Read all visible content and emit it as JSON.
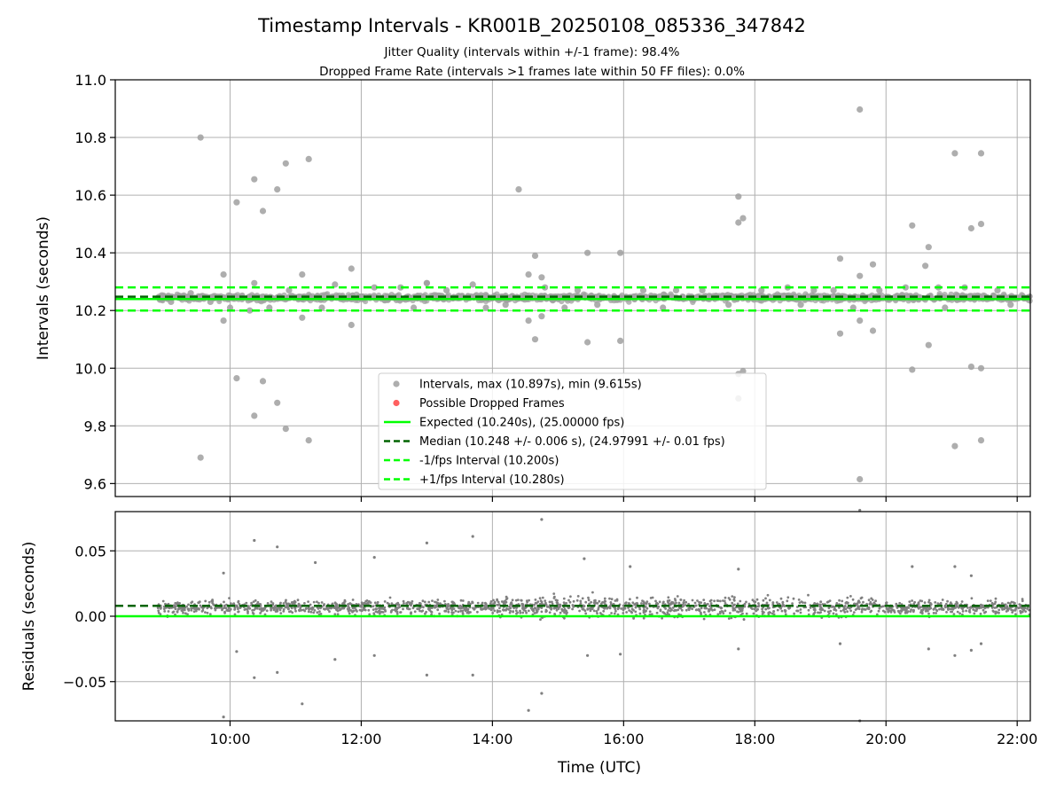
{
  "figure": {
    "title": "Timestamp Intervals - KR001B_20250108_085336_347842",
    "subtitle_1": "Jitter Quality (intervals within +/-1 frame): 98.4%",
    "subtitle_2": "Dropped Frame Rate (intervals >1 frames late within 50 FF files): 0.0%",
    "colors": {
      "expected": "#00ff00",
      "median": "#006400",
      "fps_bounds": "#00ff00",
      "intervals": "#a0a0a0",
      "residuals": "#808080",
      "dropped": "#ff4444",
      "grid": "#b0b0b0"
    }
  },
  "chart_data": [
    {
      "type": "scatter",
      "panel": "top",
      "ylabel": "Intervals (seconds)",
      "xlabel": "",
      "x_unit": "hours UTC",
      "xlim": [
        8.25,
        22.2
      ],
      "ylim": [
        9.555,
        11.0
      ],
      "xticks": [
        10,
        12,
        14,
        16,
        18,
        20,
        22
      ],
      "xtick_labels": [
        "10:00",
        "12:00",
        "14:00",
        "16:00",
        "18:00",
        "20:00",
        "22:00"
      ],
      "yticks": [
        9.6,
        9.8,
        10.0,
        10.2,
        10.4,
        10.6,
        10.8,
        11.0
      ],
      "ytick_labels": [
        "9.6",
        "9.8",
        "10.0",
        "10.2",
        "10.4",
        "10.6",
        "10.8",
        "11.0"
      ],
      "grid": true,
      "legend_position": "lower center",
      "legend": [
        {
          "label": "Intervals, max (10.897s), min (9.615s)",
          "kind": "dot",
          "color": "#a0a0a0"
        },
        {
          "label": "Possible Dropped Frames",
          "kind": "dot",
          "color": "#ff4444"
        },
        {
          "label": "Expected (10.240s), (25.00000 fps)",
          "kind": "solid",
          "color": "#00ff00"
        },
        {
          "label": "Median (10.248 +/- 0.006 s), (24.97991 +/- 0.01 fps)",
          "kind": "dashed",
          "color": "#006400"
        },
        {
          "label": "-1/fps Interval (10.200s)",
          "kind": "dashed",
          "color": "#00ff00"
        },
        {
          "label": "+1/fps Interval (10.280s)",
          "kind": "dashed",
          "color": "#00ff00"
        }
      ],
      "reference_lines": {
        "expected": 10.24,
        "median": 10.248,
        "minus_1fps": 10.2,
        "plus_1fps": 10.28
      },
      "dense_band": {
        "x_start": 8.9,
        "x_end": 22.2,
        "center": 10.245,
        "spread": 0.012
      },
      "series": [
        {
          "name": "Intervals",
          "points": [
            [
              9.55,
              10.8
            ],
            [
              9.55,
              9.69
            ],
            [
              9.9,
              10.325
            ],
            [
              9.9,
              10.165
            ],
            [
              10.1,
              10.575
            ],
            [
              10.1,
              9.965
            ],
            [
              10.37,
              10.655
            ],
            [
              10.37,
              9.835
            ],
            [
              10.37,
              10.295
            ],
            [
              10.5,
              10.545
            ],
            [
              10.5,
              9.955
            ],
            [
              10.72,
              10.62
            ],
            [
              10.72,
              9.88
            ],
            [
              10.85,
              10.71
            ],
            [
              10.85,
              9.79
            ],
            [
              11.2,
              10.725
            ],
            [
              11.2,
              9.75
            ],
            [
              11.1,
              10.325
            ],
            [
              11.1,
              10.175
            ],
            [
              11.85,
              10.345
            ],
            [
              11.85,
              10.15
            ],
            [
              13.0,
              10.295
            ],
            [
              13.0,
              10.295
            ],
            [
              14.4,
              10.62
            ],
            [
              14.55,
              10.325
            ],
            [
              14.55,
              10.165
            ],
            [
              14.65,
              10.39
            ],
            [
              14.65,
              10.1
            ],
            [
              14.75,
              10.315
            ],
            [
              14.75,
              10.18
            ],
            [
              15.45,
              10.4
            ],
            [
              15.45,
              10.09
            ],
            [
              15.95,
              10.4
            ],
            [
              15.95,
              10.095
            ],
            [
              17.75,
              10.595
            ],
            [
              17.75,
              10.505
            ],
            [
              17.82,
              10.52
            ],
            [
              17.75,
              9.98
            ],
            [
              17.82,
              9.99
            ],
            [
              17.75,
              9.895
            ],
            [
              19.3,
              10.38
            ],
            [
              19.3,
              10.12
            ],
            [
              19.6,
              10.897
            ],
            [
              19.6,
              9.615
            ],
            [
              19.6,
              10.32
            ],
            [
              19.6,
              10.165
            ],
            [
              19.8,
              10.36
            ],
            [
              19.8,
              10.13
            ],
            [
              20.4,
              10.495
            ],
            [
              20.4,
              9.995
            ],
            [
              20.6,
              10.355
            ],
            [
              20.65,
              10.42
            ],
            [
              20.65,
              10.08
            ],
            [
              21.05,
              10.745
            ],
            [
              21.05,
              9.73
            ],
            [
              21.3,
              10.485
            ],
            [
              21.3,
              10.005
            ],
            [
              21.45,
              10.745
            ],
            [
              21.45,
              10.5
            ],
            [
              21.45,
              9.75
            ],
            [
              21.45,
              10.0
            ],
            [
              9.7,
              10.23
            ],
            [
              10.3,
              10.2
            ],
            [
              10.6,
              10.21
            ],
            [
              10.9,
              10.27
            ],
            [
              11.6,
              10.29
            ],
            [
              12.2,
              10.28
            ],
            [
              12.6,
              10.28
            ],
            [
              13.3,
              10.27
            ],
            [
              13.7,
              10.29
            ],
            [
              14.2,
              10.22
            ],
            [
              14.8,
              10.28
            ],
            [
              15.3,
              10.27
            ],
            [
              15.6,
              10.22
            ],
            [
              16.3,
              10.27
            ],
            [
              16.8,
              10.27
            ],
            [
              17.2,
              10.27
            ],
            [
              18.1,
              10.27
            ],
            [
              18.5,
              10.28
            ],
            [
              18.9,
              10.27
            ],
            [
              19.2,
              10.27
            ],
            [
              19.9,
              10.27
            ],
            [
              20.3,
              10.28
            ],
            [
              20.8,
              10.28
            ],
            [
              21.2,
              10.28
            ],
            [
              21.7,
              10.27
            ],
            [
              9.1,
              10.23
            ],
            [
              9.4,
              10.26
            ],
            [
              10.0,
              10.21
            ],
            [
              11.4,
              10.21
            ],
            [
              12.8,
              10.21
            ],
            [
              13.9,
              10.21
            ],
            [
              15.1,
              10.21
            ],
            [
              16.6,
              10.21
            ],
            [
              17.6,
              10.22
            ],
            [
              18.7,
              10.22
            ],
            [
              19.5,
              10.21
            ],
            [
              20.9,
              10.21
            ],
            [
              21.9,
              10.22
            ]
          ]
        }
      ]
    },
    {
      "type": "scatter",
      "panel": "bottom",
      "ylabel": "Residuals (seconds)",
      "xlabel": "Time (UTC)",
      "x_unit": "hours UTC",
      "xlim": [
        8.25,
        22.2
      ],
      "ylim": [
        -0.08,
        0.08
      ],
      "xticks": [
        10,
        12,
        14,
        16,
        18,
        20,
        22
      ],
      "xtick_labels": [
        "10:00",
        "12:00",
        "14:00",
        "16:00",
        "18:00",
        "20:00",
        "22:00"
      ],
      "yticks": [
        -0.05,
        0.0,
        0.05
      ],
      "ytick_labels": [
        "−0.05",
        "0.00",
        "0.05"
      ],
      "grid": true,
      "reference_lines": {
        "zero": 0.0,
        "median_offset": 0.008
      },
      "dense_band": {
        "x_start": 8.9,
        "x_end": 22.2,
        "center": 0.007,
        "spread": 0.006
      },
      "series": [
        {
          "name": "Residuals",
          "points": [
            [
              10.37,
              0.058
            ],
            [
              10.72,
              0.053
            ],
            [
              9.9,
              0.033
            ],
            [
              11.3,
              0.041
            ],
            [
              12.2,
              0.045
            ],
            [
              13.0,
              0.056
            ],
            [
              13.7,
              0.061
            ],
            [
              14.75,
              0.074
            ],
            [
              15.4,
              0.044
            ],
            [
              16.1,
              0.038
            ],
            [
              17.75,
              0.036
            ],
            [
              19.6,
              0.081
            ],
            [
              20.4,
              0.038
            ],
            [
              21.05,
              0.038
            ],
            [
              21.3,
              0.031
            ],
            [
              9.9,
              -0.077
            ],
            [
              10.1,
              -0.027
            ],
            [
              10.37,
              -0.047
            ],
            [
              10.72,
              -0.043
            ],
            [
              11.1,
              -0.067
            ],
            [
              11.6,
              -0.033
            ],
            [
              12.2,
              -0.03
            ],
            [
              13.0,
              -0.045
            ],
            [
              13.7,
              -0.045
            ],
            [
              14.55,
              -0.072
            ],
            [
              14.75,
              -0.059
            ],
            [
              15.45,
              -0.03
            ],
            [
              15.95,
              -0.029
            ],
            [
              17.75,
              -0.025
            ],
            [
              19.6,
              -0.08
            ],
            [
              19.3,
              -0.021
            ],
            [
              20.65,
              -0.025
            ],
            [
              21.05,
              -0.03
            ],
            [
              21.3,
              -0.026
            ],
            [
              21.45,
              -0.021
            ]
          ]
        }
      ]
    }
  ]
}
